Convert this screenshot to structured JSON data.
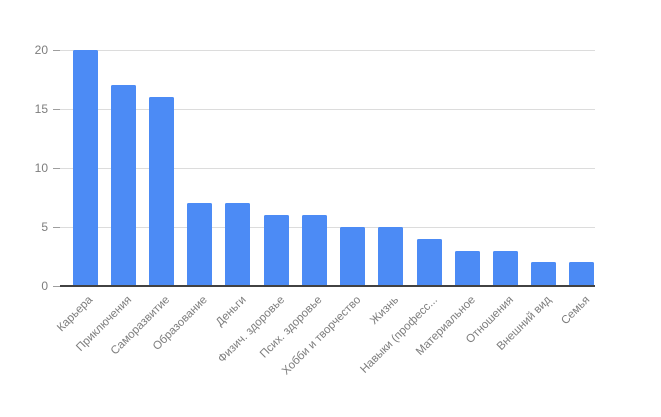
{
  "chart_data": {
    "type": "bar",
    "title": "",
    "xlabel": "",
    "ylabel": "",
    "categories": [
      "Карьера",
      "Приключения",
      "Саморазвитие",
      "Образование",
      "Деньги",
      "Физич. здоровье",
      "Псих. здоровье",
      "Хобби и творчество",
      "Жизнь",
      "Навыки (професс...",
      "Материальное",
      "Отношения",
      "Внешний вид",
      "Семья"
    ],
    "values": [
      20,
      17,
      16,
      7,
      7,
      6,
      6,
      5,
      5,
      4,
      3,
      3,
      2,
      2
    ],
    "ylim": [
      0,
      20
    ],
    "yticks": [
      0,
      5,
      10,
      15,
      20
    ],
    "ytick_labels": [
      "0",
      "5",
      "10",
      "15",
      "20"
    ],
    "grid": true,
    "legend": "none",
    "x_label_rotation_deg": -45,
    "colors": {
      "bar": "#4c8bf5",
      "gridline": "#dcdcdc",
      "axis_line": "#424242",
      "tick_mark": "#9e9e9e",
      "tick_label": "#7d7d7d",
      "background": "#ffffff"
    }
  }
}
